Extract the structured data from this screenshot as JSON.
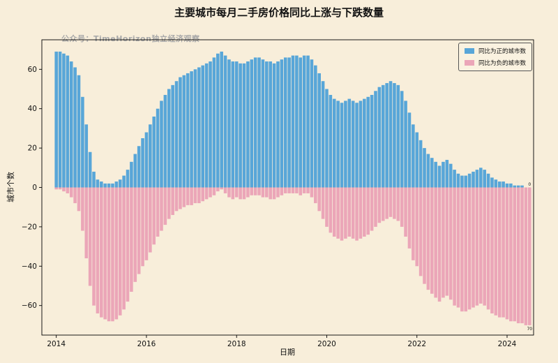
{
  "page": {
    "watermark": "公众号：TimeHorizon独立经济观察"
  },
  "chart_data": {
    "type": "bar",
    "title": "主要城市每月二手房价格同比上涨与下跌数量",
    "xlabel": "日期",
    "ylabel": "城市个数",
    "ylim": [
      -75,
      75
    ],
    "grid": false,
    "legend_position": "upper right",
    "x_months": {
      "start": "2014-01",
      "end": "2024-07",
      "freq": "monthly",
      "count": 127
    },
    "x_ticks": [
      "2014",
      "2016",
      "2018",
      "2020",
      "2022",
      "2024"
    ],
    "y_ticks": [
      -60,
      -40,
      -20,
      0,
      20,
      40,
      60
    ],
    "colors": {
      "positive": "#58a6d8",
      "negative": "#eba6b8",
      "background": "#f8eeda"
    },
    "series": [
      {
        "name": "同比为正的城市数",
        "color": "#58a6d8",
        "values": [
          69,
          69,
          68,
          67,
          64,
          61,
          57,
          46,
          32,
          18,
          8,
          4,
          3,
          2,
          2,
          2,
          3,
          4,
          6,
          9,
          13,
          17,
          21,
          25,
          28,
          32,
          36,
          40,
          44,
          47,
          50,
          52,
          54,
          56,
          57,
          58,
          59,
          60,
          61,
          62,
          63,
          64,
          66,
          68,
          69,
          67,
          65,
          64,
          64,
          63,
          63,
          64,
          65,
          66,
          66,
          65,
          64,
          64,
          63,
          64,
          65,
          66,
          66,
          67,
          67,
          66,
          67,
          67,
          65,
          62,
          58,
          54,
          50,
          47,
          45,
          44,
          43,
          44,
          45,
          44,
          43,
          44,
          45,
          46,
          47,
          49,
          51,
          52,
          53,
          54,
          53,
          52,
          49,
          44,
          38,
          32,
          28,
          24,
          20,
          17,
          15,
          13,
          11,
          13,
          14,
          12,
          9,
          7,
          6,
          6,
          7,
          8,
          9,
          10,
          9,
          7,
          5,
          4,
          3,
          3,
          2,
          2,
          1,
          1,
          1,
          0,
          0
        ]
      },
      {
        "name": "同比为负的城市数",
        "color": "#eba6b8",
        "values": [
          -1,
          -1,
          -2,
          -3,
          -5,
          -8,
          -12,
          -22,
          -36,
          -50,
          -60,
          -64,
          -66,
          -67,
          -68,
          -68,
          -67,
          -65,
          -62,
          -58,
          -53,
          -48,
          -44,
          -40,
          -37,
          -33,
          -29,
          -25,
          -22,
          -19,
          -16,
          -14,
          -12,
          -11,
          -10,
          -9,
          -9,
          -8,
          -8,
          -7,
          -6,
          -5,
          -4,
          -2,
          -1,
          -3,
          -5,
          -6,
          -5,
          -6,
          -6,
          -5,
          -4,
          -4,
          -4,
          -5,
          -5,
          -6,
          -6,
          -5,
          -4,
          -3,
          -3,
          -3,
          -3,
          -4,
          -3,
          -3,
          -5,
          -8,
          -12,
          -16,
          -20,
          -23,
          -25,
          -26,
          -27,
          -26,
          -25,
          -26,
          -27,
          -26,
          -25,
          -24,
          -22,
          -20,
          -18,
          -17,
          -16,
          -15,
          -16,
          -17,
          -20,
          -25,
          -31,
          -37,
          -40,
          -45,
          -49,
          -52,
          -54,
          -56,
          -58,
          -56,
          -55,
          -57,
          -60,
          -61,
          -63,
          -63,
          -62,
          -61,
          -60,
          -59,
          -60,
          -62,
          -64,
          -65,
          -66,
          -66,
          -67,
          -68,
          -68,
          -69,
          -69,
          -70,
          -70
        ]
      }
    ],
    "end_annotations": {
      "positive": "0",
      "negative": "70"
    }
  }
}
